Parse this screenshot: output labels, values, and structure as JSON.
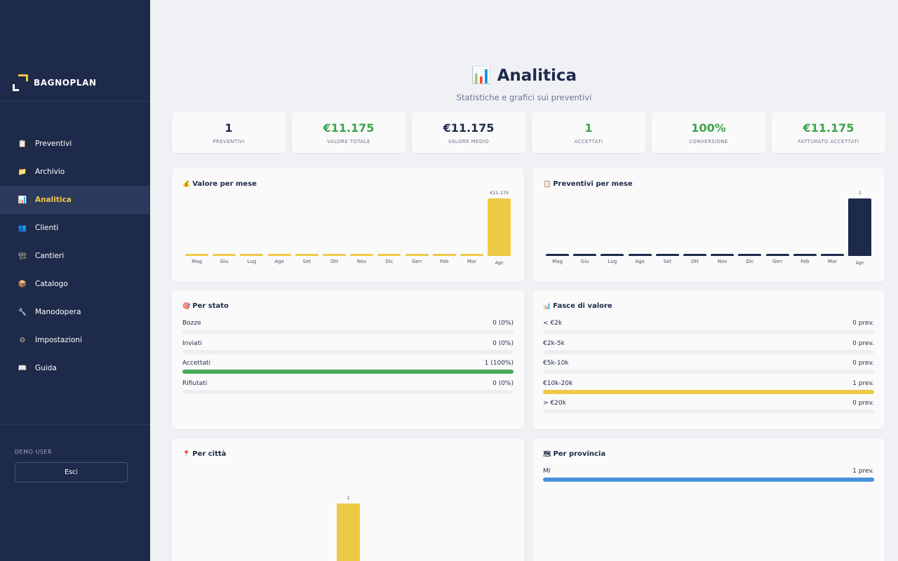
{
  "brand": {
    "name": "BAGNOPLAN"
  },
  "sidebar": {
    "items": [
      {
        "label": "Preventivi",
        "icon": "clipboard-icon",
        "glyph": "📋"
      },
      {
        "label": "Archivio",
        "icon": "folder-icon",
        "glyph": "📁"
      },
      {
        "label": "Analitica",
        "icon": "bar-chart-icon",
        "glyph": "📊",
        "active": true
      },
      {
        "label": "Clienti",
        "icon": "users-icon",
        "glyph": "👥"
      },
      {
        "label": "Cantieri",
        "icon": "construction-icon",
        "glyph": "🏗"
      },
      {
        "label": "Catalogo",
        "icon": "package-icon",
        "glyph": "📦"
      },
      {
        "label": "Manodopera",
        "icon": "wrench-icon",
        "glyph": "🔧"
      },
      {
        "label": "Impostazioni",
        "icon": "gear-icon",
        "glyph": "⚙"
      },
      {
        "label": "Guida",
        "icon": "book-icon",
        "glyph": "📖"
      }
    ],
    "user": "DEMO USER",
    "logout_label": "Esci"
  },
  "header": {
    "icon": "📊",
    "title": "Analitica",
    "subtitle": "Statistiche e grafici sui preventivi"
  },
  "kpis": [
    {
      "value": "1",
      "label": "PREVENTIVI",
      "color": "#1e2a4a"
    },
    {
      "value": "€11.175",
      "label": "VALORE TOTALE",
      "color": "#3ea34a"
    },
    {
      "value": "€11.175",
      "label": "VALORE MEDIO",
      "color": "#1e2a4a"
    },
    {
      "value": "1",
      "label": "ACCETTATI",
      "color": "#3ea34a"
    },
    {
      "value": "100%",
      "label": "CONVERSIONE",
      "color": "#3ea34a"
    },
    {
      "value": "€11.175",
      "label": "FATTURATO ACCETTATI",
      "color": "#3ea34a"
    }
  ],
  "cards": {
    "valore_per_mese": {
      "icon": "💰",
      "title": "Valore per mese"
    },
    "preventivi_per_mese": {
      "icon": "📋",
      "title": "Preventivi per mese"
    },
    "per_stato": {
      "icon": "🎯",
      "title": "Per stato"
    },
    "fasce_valore": {
      "icon": "📊",
      "title": "Fasce di valore"
    },
    "per_citta": {
      "icon": "📍",
      "title": "Per città"
    },
    "per_provincia": {
      "icon": "🗺",
      "title": "Per provincia"
    }
  },
  "chart_data": [
    {
      "type": "bar",
      "categories": [
        "Mag",
        "Giu",
        "Lug",
        "Ago",
        "Set",
        "Ott",
        "Nov",
        "Dic",
        "Gen",
        "Feb",
        "Mar",
        "Apr"
      ],
      "values": [
        0,
        0,
        0,
        0,
        0,
        0,
        0,
        0,
        0,
        0,
        0,
        11175
      ],
      "data_labels": [
        "",
        "",
        "",
        "",
        "",
        "",
        "",
        "",
        "",
        "",
        "",
        "€11.175"
      ],
      "color": "#edca45"
    },
    {
      "type": "bar",
      "categories": [
        "Mag",
        "Giu",
        "Lug",
        "Ago",
        "Set",
        "Ott",
        "Nov",
        "Dic",
        "Gen",
        "Feb",
        "Mar",
        "Apr"
      ],
      "values": [
        0,
        0,
        0,
        0,
        0,
        0,
        0,
        0,
        0,
        0,
        0,
        1
      ],
      "data_labels": [
        "",
        "",
        "",
        "",
        "",
        "",
        "",
        "",
        "",
        "",
        "",
        "1"
      ],
      "color": "#1e2a4a"
    },
    {
      "type": "bar",
      "categories": [
        ""
      ],
      "values": [
        1
      ],
      "data_labels": [
        "1"
      ],
      "color": "#edca45"
    }
  ],
  "per_stato": [
    {
      "label": "Bozze",
      "value": "0 (0%)",
      "fraction": 0,
      "color": "#9aa0b0"
    },
    {
      "label": "Inviati",
      "value": "0 (0%)",
      "fraction": 0,
      "color": "#4a90d9"
    },
    {
      "label": "Accettati",
      "value": "1 (100%)",
      "fraction": 1,
      "color": "#4caa5a"
    },
    {
      "label": "Rifiutati",
      "value": "0 (0%)",
      "fraction": 0,
      "color": "#d9534f"
    }
  ],
  "fasce_valore": [
    {
      "label": "< €2k",
      "value": "0 prev.",
      "fraction": 0,
      "color": "#edca45"
    },
    {
      "label": "€2k-5k",
      "value": "0 prev.",
      "fraction": 0,
      "color": "#edca45"
    },
    {
      "label": "€5k-10k",
      "value": "0 prev.",
      "fraction": 0,
      "color": "#edca45"
    },
    {
      "label": "€10k-20k",
      "value": "1 prev.",
      "fraction": 1,
      "color": "#edca45"
    },
    {
      "label": "> €20k",
      "value": "0 prev.",
      "fraction": 0,
      "color": "#edca45"
    }
  ],
  "per_provincia": [
    {
      "label": "MI",
      "value": "1 prev.",
      "fraction": 1,
      "color": "#4a90d9"
    }
  ]
}
